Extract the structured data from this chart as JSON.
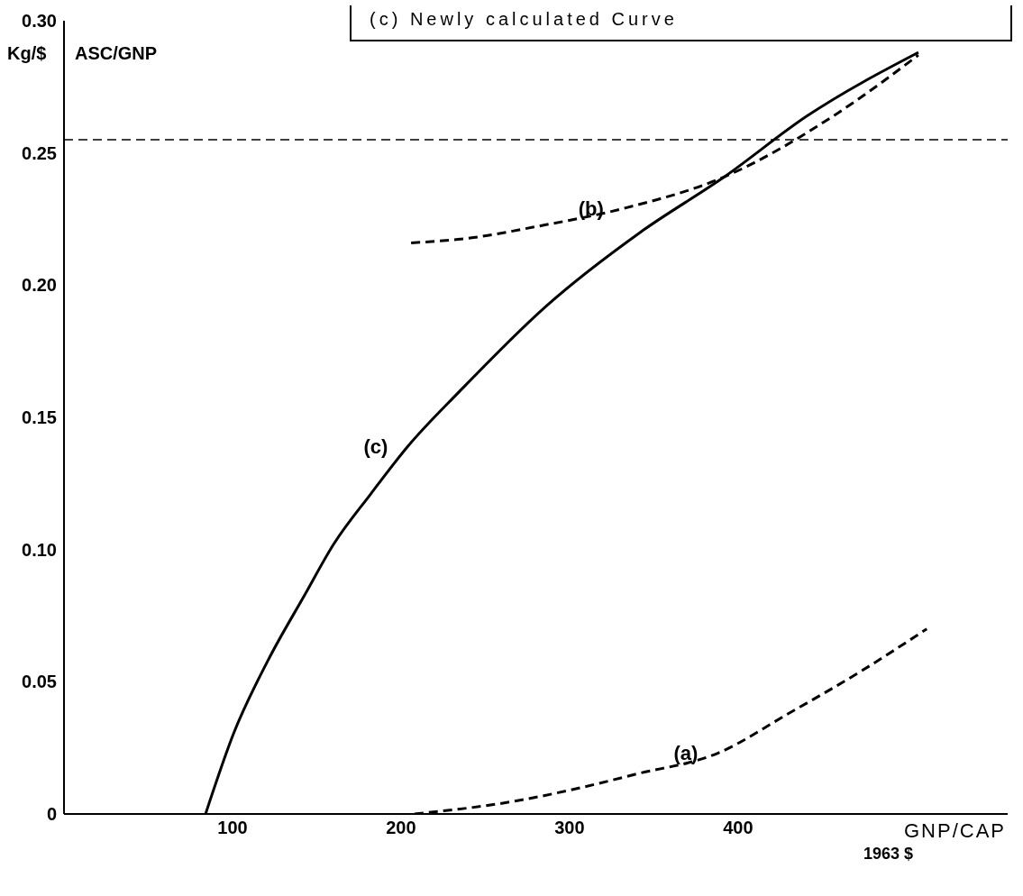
{
  "chart_data": {
    "type": "line",
    "xlabel": "GNP/CAP",
    "ylabel": "Kg/$",
    "annotations": [
      "(c) Newly calculated Curve",
      "ASC/GNP",
      "1963 $"
    ],
    "xlim": [
      0,
      560
    ],
    "xticks": [
      100,
      200,
      300,
      400
    ],
    "ylim": [
      0,
      0.3
    ],
    "yticks": [
      {
        "value": 0,
        "label": "0"
      },
      {
        "value": 0.05,
        "label": "0.05"
      },
      {
        "value": 0.1,
        "label": "0.10"
      },
      {
        "value": 0.15,
        "label": "0.15"
      },
      {
        "value": 0.2,
        "label": "0.20"
      },
      {
        "value": 0.25,
        "label": "0.25"
      },
      {
        "value": 0.3,
        "label": "0.30"
      }
    ],
    "marker": "none",
    "ref_lines": [
      {
        "axis": "y",
        "value": 0.255,
        "color": "#000000",
        "line_style": "dashed"
      }
    ],
    "series": [
      {
        "name": "(a)",
        "color": "#000000",
        "line_style": "dashed",
        "x": [
          208,
          269,
          307,
          339,
          388,
          430,
          473,
          512
        ],
        "values": [
          0,
          0.005,
          0.01,
          0.015,
          0.023,
          0.038,
          0.054,
          0.07
        ]
      },
      {
        "name": "(b)",
        "color": "#000000",
        "line_style": "dashed",
        "x": [
          206,
          243,
          279,
          332,
          392,
          459,
          507
        ],
        "values": [
          0.216,
          0.218,
          0.222,
          0.229,
          0.241,
          0.265,
          0.287
        ]
      },
      {
        "name": "(c)",
        "color": "#000000",
        "line_style": "solid",
        "x": [
          84,
          101,
          121,
          143,
          160,
          182,
          204,
          235,
          286,
          342,
          392,
          441,
          507
        ],
        "values": [
          0,
          0.031,
          0.058,
          0.083,
          0.102,
          0.121,
          0.139,
          0.16,
          0.192,
          0.22,
          0.241,
          0.264,
          0.288
        ]
      }
    ]
  }
}
